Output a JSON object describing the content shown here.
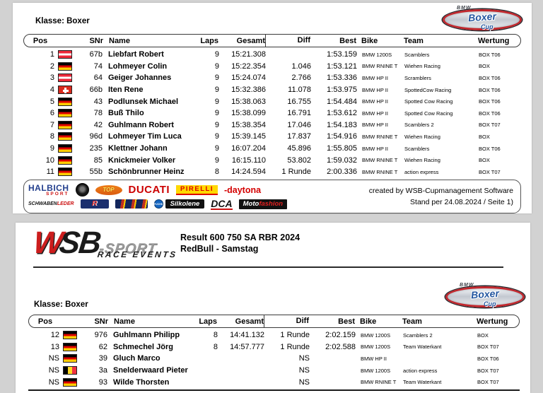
{
  "colors": {
    "accent_red": "#c1272d",
    "logo_blue": "#2457a0",
    "page_bg": "#d2d2d2"
  },
  "boxer_cup_logo": {
    "bmw": "BMW",
    "main": "Boxer",
    "sub": "Cup"
  },
  "top_panel": {
    "klasse": "Klasse: Boxer",
    "table": {
      "headers": {
        "pos": "Pos",
        "snr": "SNr",
        "name": "Name",
        "laps": "Laps",
        "gesamt": "Gesamt",
        "diff": "Diff",
        "best": "Best",
        "bike": "Bike",
        "team": "Team",
        "wertung": "Wertung"
      },
      "rows": [
        {
          "pos": "1",
          "flag": "at",
          "snr": "67b",
          "name": "Liebfart Robert",
          "laps": "9",
          "gesamt": "15:21.308",
          "diff": "",
          "best": "1:53.159",
          "bike": "BMW 1200S",
          "team": "Scamblers",
          "wertung": "BOX T06"
        },
        {
          "pos": "2",
          "flag": "de",
          "snr": "74",
          "name": "Lohmeyer Colin",
          "laps": "9",
          "gesamt": "15:22.354",
          "diff": "1.046",
          "best": "1:53.121",
          "bike": "BMW RNINE T",
          "team": "Wiehen Racing",
          "wertung": "BOX"
        },
        {
          "pos": "3",
          "flag": "at",
          "snr": "64",
          "name": "Geiger Johannes",
          "laps": "9",
          "gesamt": "15:24.074",
          "diff": "2.766",
          "best": "1:53.336",
          "bike": "BMW HP II",
          "team": "Scramblers",
          "wertung": "BOX T06"
        },
        {
          "pos": "4",
          "flag": "ch",
          "snr": "66b",
          "name": "Iten Rene",
          "laps": "9",
          "gesamt": "15:32.386",
          "diff": "11.078",
          "best": "1:53.975",
          "bike": "BMW HP II",
          "team": "SpottedCow Racing",
          "wertung": "BOX T06"
        },
        {
          "pos": "5",
          "flag": "de",
          "snr": "43",
          "name": "Podlunsek Michael",
          "laps": "9",
          "gesamt": "15:38.063",
          "diff": "16.755",
          "best": "1:54.484",
          "bike": "BMW HP II",
          "team": "Spotted Cow Racing",
          "wertung": "BOX T06"
        },
        {
          "pos": "6",
          "flag": "de",
          "snr": "78",
          "name": "Buß Thilo",
          "laps": "9",
          "gesamt": "15:38.099",
          "diff": "16.791",
          "best": "1:53.612",
          "bike": "BMW HP II",
          "team": "Spotted Cow Racing",
          "wertung": "BOX T06"
        },
        {
          "pos": "7",
          "flag": "de",
          "snr": "42",
          "name": "Guhlmann Robert",
          "laps": "9",
          "gesamt": "15:38.354",
          "diff": "17.046",
          "best": "1:54.183",
          "bike": "BMW HP II",
          "team": "Scamblers 2",
          "wertung": "BOX T07"
        },
        {
          "pos": "8",
          "flag": "de",
          "snr": "96d",
          "name": "Lohmeyer Tim Luca",
          "laps": "9",
          "gesamt": "15:39.145",
          "diff": "17.837",
          "best": "1:54.916",
          "bike": "BMW RNINE T",
          "team": "Wiehen Racing",
          "wertung": "BOX"
        },
        {
          "pos": "9",
          "flag": "de",
          "snr": "235",
          "name": "Klettner Johann",
          "laps": "9",
          "gesamt": "16:07.204",
          "diff": "45.896",
          "best": "1:55.805",
          "bike": "BMW HP II",
          "team": "Scamblers",
          "wertung": "BOX T06"
        },
        {
          "pos": "10",
          "flag": "de",
          "snr": "85",
          "name": "Knickmeier Volker",
          "laps": "9",
          "gesamt": "16:15.110",
          "diff": "53.802",
          "best": "1:59.032",
          "bike": "BMW RNINE T",
          "team": "Wiehen Racing",
          "wertung": "BOX"
        },
        {
          "pos": "11",
          "flag": "de",
          "snr": "55b",
          "name": "Schönbrunner Heinz",
          "laps": "8",
          "gesamt": "14:24.594",
          "diff": "1 Runde",
          "best": "2:00.336",
          "bike": "BMW RNINE T",
          "team": "action express",
          "wertung": "BOX T07"
        }
      ]
    },
    "sponsors_row1": [
      {
        "id": "halbich",
        "parts": [
          "HALBICH",
          "SPORT"
        ]
      },
      {
        "id": "crest",
        "parts": []
      },
      {
        "id": "top",
        "parts": [
          "TOP"
        ]
      },
      {
        "id": "ducati",
        "parts": [
          "DUCATI"
        ]
      },
      {
        "id": "pirelli",
        "parts": [
          "PIRELLI"
        ]
      },
      {
        "id": "daytona",
        "parts": [
          "-",
          "daytona"
        ]
      }
    ],
    "sponsors_row2": [
      {
        "id": "schwaben",
        "parts": [
          "SCHWABEN",
          "LEDER"
        ]
      },
      {
        "id": "rrace",
        "parts": [
          "R"
        ]
      },
      {
        "id": "stripes",
        "parts": []
      },
      {
        "id": "silkolene",
        "parts": [
          "FUCHS",
          "Silkolene"
        ]
      },
      {
        "id": "dca",
        "parts": [
          "DCA"
        ]
      },
      {
        "id": "motofashion",
        "parts": [
          "Moto",
          "fashion"
        ]
      }
    ],
    "created_line1": "created by WSB-Cupmanagement Software",
    "created_line2": "Stand per 24.08.2024 / Seite 1)"
  },
  "bottom_panel": {
    "logo": {
      "w": "W",
      "sb": "SB",
      "sport": "-SPORT",
      "sub": "RACE EVENTS"
    },
    "title_line1": "Result 600 750 SA RBR 2024",
    "title_line2": "RedBull - Samstag",
    "klasse": "Klasse: Boxer",
    "table": {
      "headers": {
        "pos": "Pos",
        "snr": "SNr",
        "name": "Name",
        "laps": "Laps",
        "gesamt": "Gesamt",
        "diff": "Diff",
        "best": "Best",
        "bike": "Bike",
        "team": "Team",
        "wertung": "Wertung"
      },
      "rows": [
        {
          "pos": "12",
          "flag": "de",
          "snr": "976",
          "name": "Guhlmann Philipp",
          "laps": "8",
          "gesamt": "14:41.132",
          "diff": "1 Runde",
          "best": "2:02.159",
          "bike": "BMW 1200S",
          "team": "Scamblers 2",
          "wertung": "BOX"
        },
        {
          "pos": "13",
          "flag": "de",
          "snr": "62",
          "name": "Schmechel Jörg",
          "laps": "8",
          "gesamt": "14:57.777",
          "diff": "1 Runde",
          "best": "2:02.588",
          "bike": "BMW 1200S",
          "team": "Team Waterkant",
          "wertung": "BOX T07"
        },
        {
          "pos": "NS",
          "flag": "de",
          "snr": "39",
          "name": "Gluch Marco",
          "laps": "",
          "gesamt": "",
          "diff": "NS",
          "best": "",
          "bike": "BMW HP II",
          "team": "",
          "wertung": "BOX T06"
        },
        {
          "pos": "NS",
          "flag": "be",
          "snr": "3a",
          "name": "Snelderwaard Pieter",
          "laps": "",
          "gesamt": "",
          "diff": "NS",
          "best": "",
          "bike": "BMW 1200S",
          "team": "action express",
          "wertung": "BOX T07"
        },
        {
          "pos": "NS",
          "flag": "de",
          "snr": "93",
          "name": "Wilde Thorsten",
          "laps": "",
          "gesamt": "",
          "diff": "NS",
          "best": "",
          "bike": "BMW RNINE T",
          "team": "Team Waterkant",
          "wertung": "BOX T07"
        }
      ]
    }
  }
}
